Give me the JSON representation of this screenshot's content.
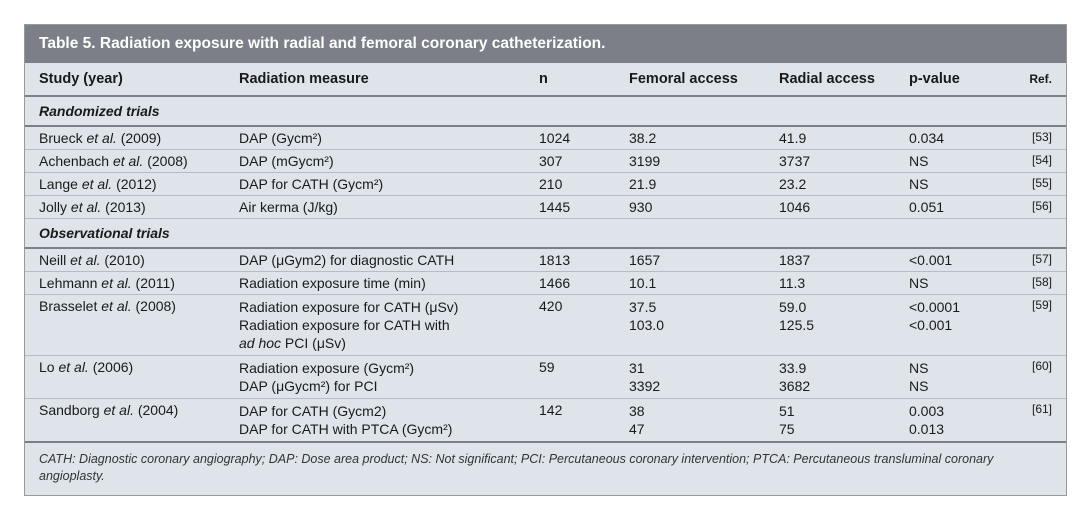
{
  "title": "Table 5. Radiation exposure with radial and femoral coronary catheterization.",
  "columns": {
    "study": "Study (year)",
    "measure": "Radiation measure",
    "n": "n",
    "femoral": "Femoral access",
    "radial": "Radial access",
    "pvalue": "p-value",
    "ref": "Ref."
  },
  "sections": {
    "randomized": "Randomized trials",
    "observational": "Observational trials"
  },
  "rows": {
    "brueck": {
      "author": "Brueck",
      "etal": "et al.",
      "year": "(2009)",
      "measure": "DAP (Gycm²)",
      "n": "1024",
      "f": "38.2",
      "r": "41.9",
      "p": "0.034",
      "ref": "[53]"
    },
    "achenbach": {
      "author": "Achenbach",
      "etal": "et al.",
      "year": "(2008)",
      "measure": "DAP (mGycm²)",
      "n": "307",
      "f": "3199",
      "r": "3737",
      "p": "NS",
      "ref": "[54]"
    },
    "lange": {
      "author": "Lange",
      "etal": "et al.",
      "year": "(2012)",
      "measure": "DAP for CATH (Gycm²)",
      "n": "210",
      "f": "21.9",
      "r": "23.2",
      "p": "NS",
      "ref": "[55]"
    },
    "jolly": {
      "author": "Jolly",
      "etal": "et al.",
      "year": "(2013)",
      "measure": "Air kerma (J/kg)",
      "n": "1445",
      "f": "930",
      "r": "1046",
      "p": "0.051",
      "ref": "[56]"
    },
    "neill": {
      "author": "Neill",
      "etal": "et al.",
      "year": "(2010)",
      "measure": "DAP (μGym2) for diagnostic CATH",
      "n": "1813",
      "f": "1657",
      "r": "1837",
      "p": "<0.001",
      "ref": "[57]"
    },
    "lehmann": {
      "author": "Lehmann",
      "etal": "et al.",
      "year": "(2011)",
      "measure": "Radiation exposure time (min)",
      "n": "1466",
      "f": "10.1",
      "r": "11.3",
      "p": "NS",
      "ref": "[58]"
    },
    "brasselet": {
      "author": "Brasselet",
      "etal": "et al.",
      "year": "(2008)",
      "measure1": "Radiation exposure for CATH (μSv)",
      "measure2a": "Radiation exposure for CATH with",
      "measure2b_i": "ad hoc",
      "measure2b_n": " PCI (μSv)",
      "n": "420",
      "f1": "37.5",
      "f2": "103.0",
      "r1": "59.0",
      "r2": "125.5",
      "p1": "<0.0001",
      "p2": "<0.001",
      "ref": "[59]"
    },
    "lo": {
      "author": "Lo",
      "etal": "et al.",
      "year": "(2006)",
      "measure1": "Radiation exposure (Gycm²)",
      "measure2": "DAP (μGycm²) for PCI",
      "n": "59",
      "f1": "31",
      "f2": "3392",
      "r1": "33.9",
      "r2": "3682",
      "p1": "NS",
      "p2": "NS",
      "ref": "[60]"
    },
    "sandborg": {
      "author": "Sandborg",
      "etal": "et al.",
      "year": "(2004)",
      "measure1": "DAP for CATH (Gycm2)",
      "measure2": "DAP for CATH with PTCA (Gycm²)",
      "n": "142",
      "f1": "38",
      "f2": "47",
      "r1": "51",
      "r2": "75",
      "p1": "0.003",
      "p2": "0.013",
      "ref": "[61]"
    }
  },
  "footnote": "CATH: Diagnostic coronary angiography; DAP: Dose area product; NS: Not significant; PCI: Percutaneous coronary intervention; PTCA: Percutaneous transluminal coronary angioplasty."
}
